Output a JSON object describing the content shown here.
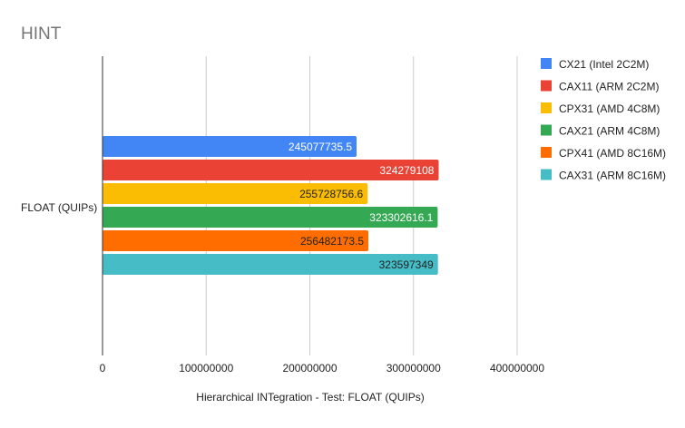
{
  "chart_data": {
    "type": "bar",
    "orientation": "horizontal",
    "title": "HINT",
    "xlabel": "Hierarchical INTegration - Test: FLOAT (QUIPs)",
    "ylabel": "",
    "categories": [
      "FLOAT (QUIPs)"
    ],
    "xlim": [
      0,
      400000000
    ],
    "xticks": [
      0,
      100000000,
      200000000,
      300000000,
      400000000
    ],
    "xtick_labels": [
      "0",
      "100000000",
      "200000000",
      "300000000",
      "400000000"
    ],
    "grid": true,
    "legend_position": "right",
    "series": [
      {
        "name": "CX21 (Intel 2C2M)",
        "values": [
          245077735.5
        ],
        "label": "245077735.5",
        "color": "#4285f4",
        "label_color": "#ffffff"
      },
      {
        "name": "CAX11 (ARM 2C2M)",
        "values": [
          324279108
        ],
        "label": "324279108",
        "color": "#ea4335",
        "label_color": "#ffffff"
      },
      {
        "name": "CPX31 (AMD 4C8M)",
        "values": [
          255728756.6
        ],
        "label": "255728756.6",
        "color": "#fbbc04",
        "label_color": "#222222"
      },
      {
        "name": "CAX21 (ARM 4C8M)",
        "values": [
          323302616.1
        ],
        "label": "323302616.1",
        "color": "#34a853",
        "label_color": "#ffffff"
      },
      {
        "name": "CPX41 (AMD 8C16M)",
        "values": [
          256482173.5
        ],
        "label": "256482173.5",
        "color": "#ff6d01",
        "label_color": "#222222"
      },
      {
        "name": "CAX31 (ARM 8C16M)",
        "values": [
          323597349
        ],
        "label": "323597349",
        "color": "#46bdc6",
        "label_color": "#222222"
      }
    ]
  }
}
